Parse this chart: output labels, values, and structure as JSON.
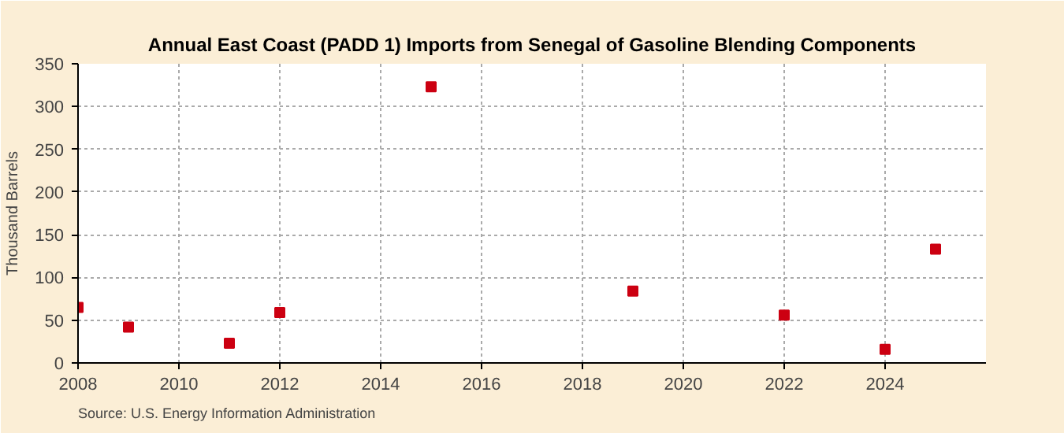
{
  "chart_data": {
    "type": "scatter",
    "title": "Annual East Coast (PADD 1) Imports from Senegal of Gasoline Blending Components",
    "ylabel": "Thousand Barrels",
    "x": [
      2008,
      2009,
      2011,
      2012,
      2015,
      2019,
      2022,
      2024,
      2025
    ],
    "series": [
      {
        "color": "#cc0011",
        "values": [
          65,
          42,
          23,
          59,
          323,
          84,
          56,
          16,
          133
        ]
      }
    ],
    "xlim": [
      2008,
      2026
    ],
    "xticks": [
      2008,
      2010,
      2012,
      2014,
      2016,
      2018,
      2020,
      2022,
      2024
    ],
    "ylim": [
      0,
      350
    ],
    "yticks": [
      0,
      50,
      100,
      150,
      200,
      250,
      300,
      350
    ],
    "grid": true,
    "marker": "square",
    "annotations": [
      "Source: U.S. Energy Information Administration"
    ]
  }
}
